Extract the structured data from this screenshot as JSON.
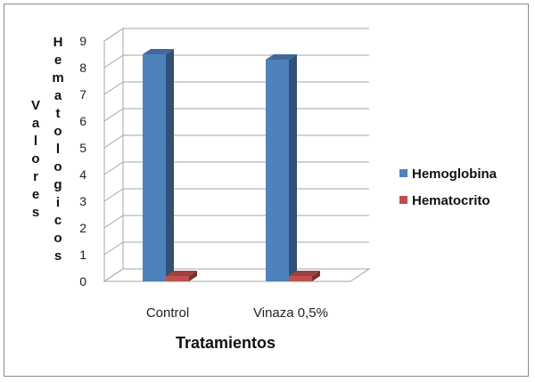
{
  "chart_data": {
    "type": "bar",
    "categories": [
      "Control",
      "Vinaza 0,5%"
    ],
    "series": [
      {
        "name": "Hemoglobina",
        "values": [
          8.5,
          8.3
        ],
        "color": "#4F81BD"
      },
      {
        "name": "Hematocrito",
        "values": [
          0.2,
          0.2
        ],
        "color": "#C0504D"
      }
    ],
    "title": "",
    "xlabel": "Tratamientos",
    "ylabel_columns": [
      "Valores",
      "Hematologicos"
    ],
    "ylim": [
      0,
      9
    ],
    "yticks": [
      0,
      1,
      2,
      3,
      4,
      5,
      6,
      7,
      8,
      9
    ],
    "grid": true,
    "legend_position": "right",
    "style": "3d-clustered-column"
  }
}
